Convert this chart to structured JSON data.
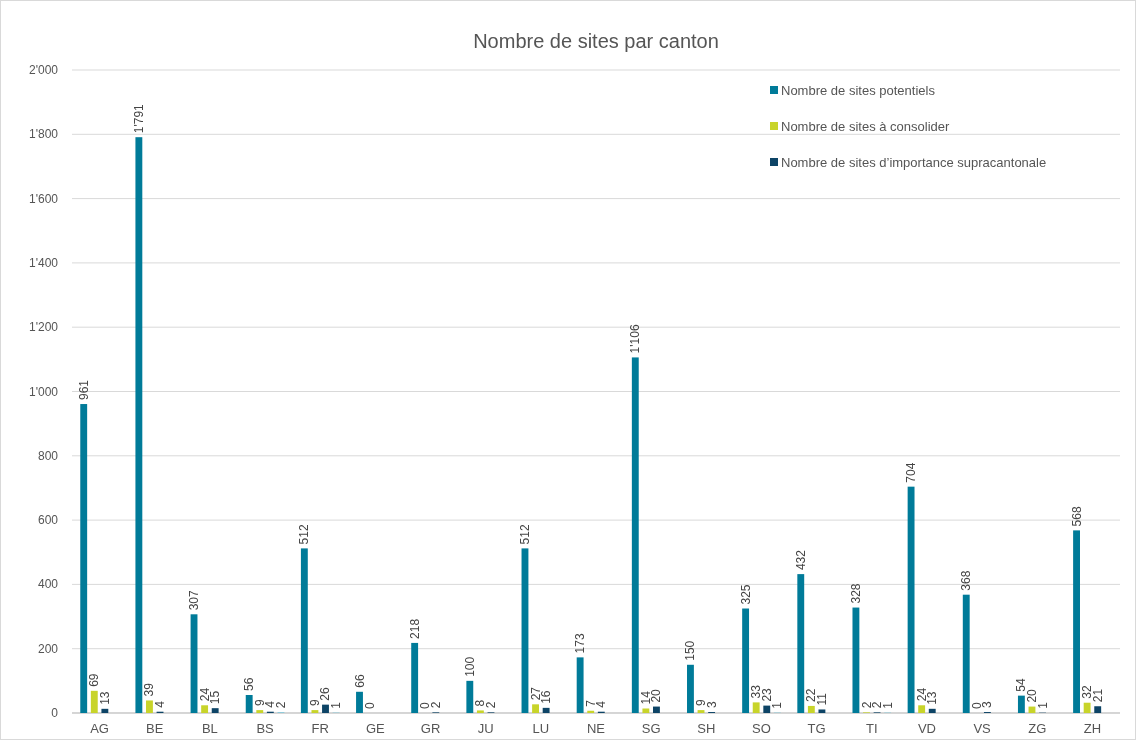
{
  "chart_data": {
    "type": "bar",
    "title": "Nombre de sites par canton",
    "categories": [
      "AG",
      "BE",
      "BL",
      "BS",
      "FR",
      "GE",
      "GR",
      "JU",
      "LU",
      "NE",
      "SG",
      "SH",
      "SO",
      "TG",
      "TI",
      "VD",
      "VS",
      "ZG",
      "ZH"
    ],
    "series": [
      {
        "name": "Nombre de sites potentiels",
        "color": "#007b99",
        "values": [
          961,
          1791,
          307,
          56,
          512,
          66,
          218,
          100,
          512,
          173,
          1106,
          150,
          325,
          432,
          328,
          704,
          368,
          54,
          568
        ],
        "value_labels": [
          "961",
          "1'791",
          "307",
          "56",
          "512",
          "66",
          "218",
          "100",
          "512",
          "173",
          "1'106",
          "150",
          "325",
          "432",
          "328",
          "704",
          "368",
          "54",
          "568"
        ]
      },
      {
        "name": "Nombre de sites à consolider",
        "color": "#c8d42a",
        "values": [
          69,
          39,
          24,
          9,
          9,
          0,
          0,
          8,
          27,
          7,
          14,
          9,
          33,
          22,
          2,
          24,
          0,
          20,
          32
        ],
        "value_labels": [
          "69",
          "39",
          "24",
          "9",
          "9",
          "0",
          "0",
          "8",
          "27",
          "7",
          "14",
          "9",
          "33",
          "22",
          "2",
          "24",
          "0",
          "20",
          "32"
        ]
      },
      {
        "name": "Nombre de sites d’importance supracantonale",
        "color": "#0d4466",
        "values": [
          13,
          4,
          15,
          4,
          26,
          null,
          2,
          2,
          16,
          4,
          20,
          3,
          23,
          11,
          2,
          13,
          3,
          1,
          21
        ],
        "value_labels": [
          "13",
          "4",
          "15",
          "4",
          "26",
          null,
          "2",
          "2",
          "16",
          "4",
          "20",
          "3",
          "23",
          "11",
          "2",
          "13",
          "3",
          "1",
          "21"
        ]
      },
      {
        "color": "#6cc5db",
        "values": [
          null,
          null,
          null,
          2,
          1,
          null,
          null,
          null,
          null,
          null,
          null,
          null,
          1,
          null,
          1,
          null,
          null,
          null,
          null
        ],
        "value_labels": [
          null,
          null,
          null,
          "2",
          "1",
          null,
          null,
          null,
          null,
          null,
          null,
          null,
          "1",
          null,
          "1",
          null,
          null,
          null,
          null
        ]
      }
    ],
    "ylim": [
      0,
      2000
    ],
    "yticks": [
      0,
      {
        "value": 200,
        "label": "200"
      },
      {
        "value": 400,
        "label": "400"
      },
      {
        "value": 600,
        "label": "600"
      },
      {
        "value": 800,
        "label": "800"
      },
      {
        "value": 1000,
        "label": "1'000"
      },
      {
        "value": 1200,
        "label": "1'200"
      },
      {
        "value": 1400,
        "label": "1'400"
      },
      {
        "value": 1600,
        "label": "1'600"
      },
      {
        "value": 1800,
        "label": "1'800"
      },
      {
        "value": 2000,
        "label": "2'000"
      }
    ],
    "grid": "y",
    "legend": "top right"
  }
}
